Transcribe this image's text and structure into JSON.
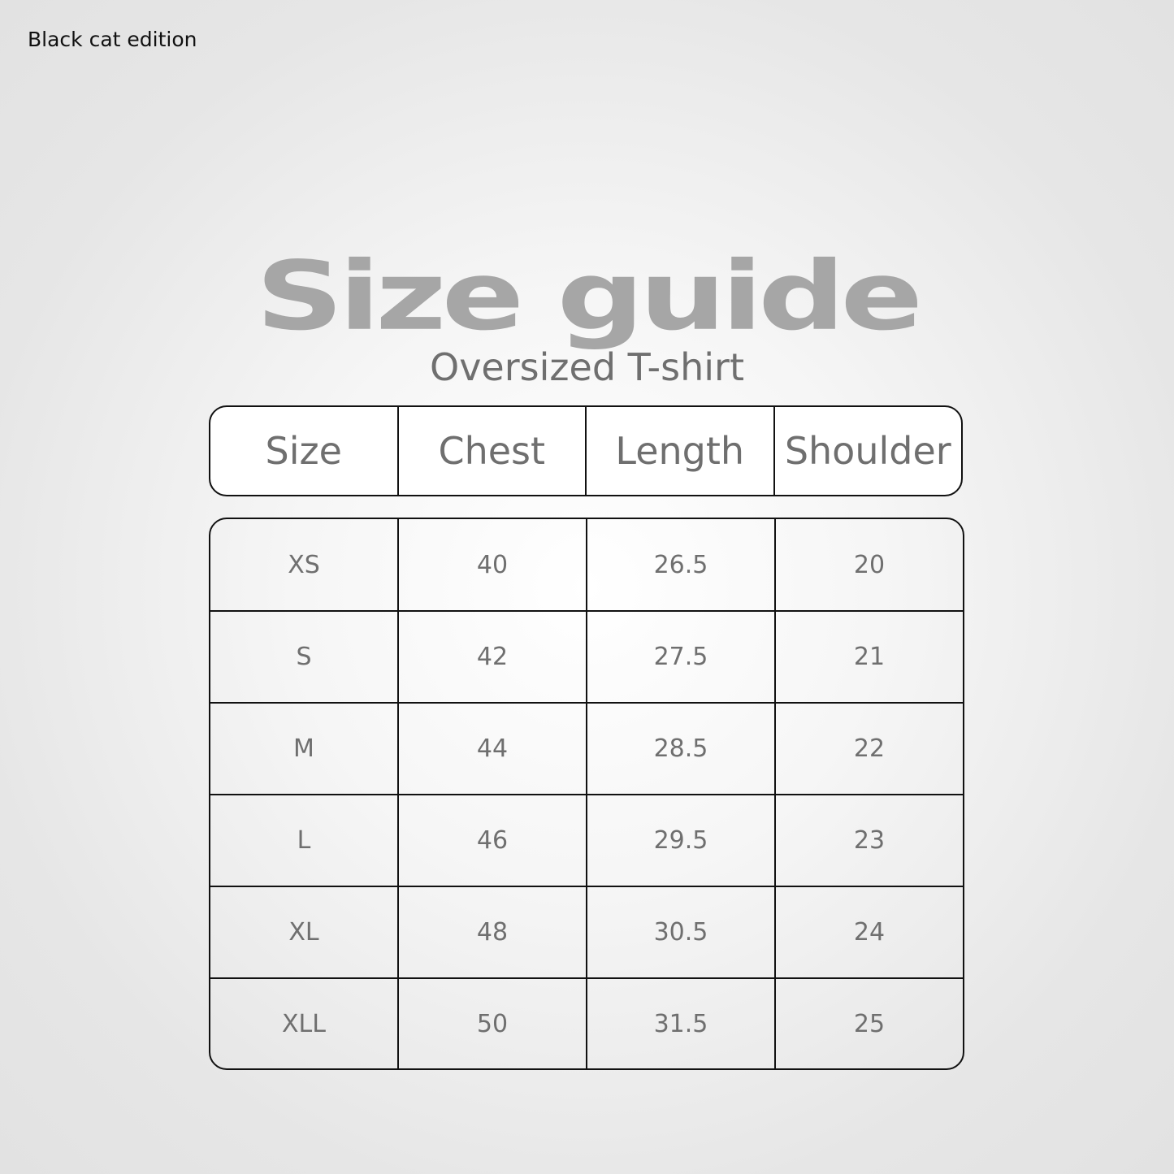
{
  "edition": "Black cat edition",
  "title": "Size guide",
  "subtitle": "Oversized T-shirt",
  "columns": [
    "Size",
    "Chest",
    "Length",
    "Shoulder"
  ],
  "rows": [
    [
      "XS",
      "40",
      "26.5",
      "20"
    ],
    [
      "S",
      "42",
      "27.5",
      "21"
    ],
    [
      "M",
      "44",
      "28.5",
      "22"
    ],
    [
      "L",
      "46",
      "29.5",
      "23"
    ],
    [
      "XL",
      "48",
      "30.5",
      "24"
    ],
    [
      "XLL",
      "50",
      "31.5",
      "25"
    ]
  ]
}
